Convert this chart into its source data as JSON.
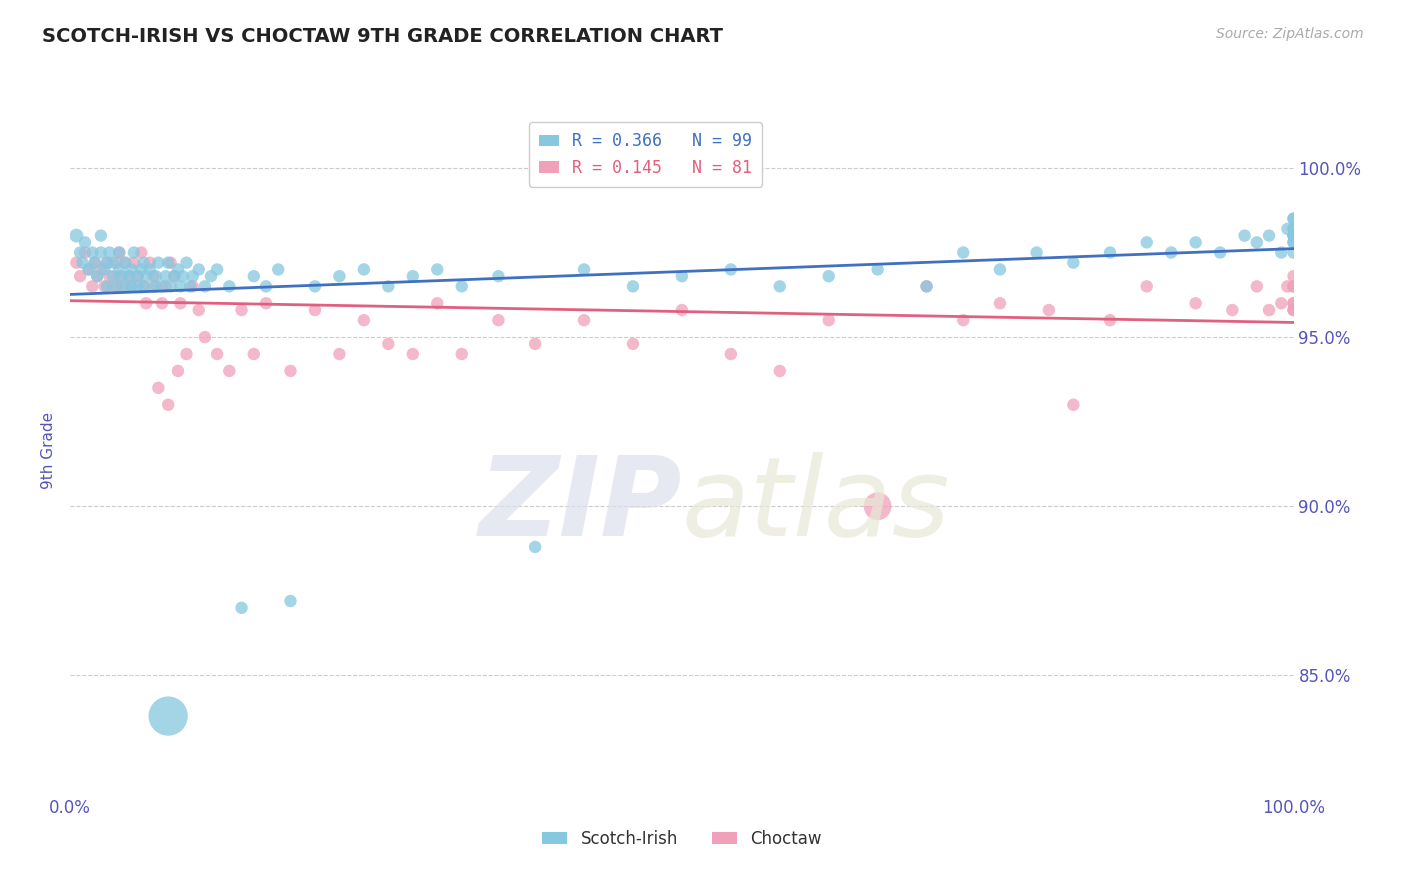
{
  "title": "SCOTCH-IRISH VS CHOCTAW 9TH GRADE CORRELATION CHART",
  "source_text": "Source: ZipAtlas.com",
  "ylabel": "9th Grade",
  "xmin": 0.0,
  "xmax": 1.0,
  "ymin": 0.815,
  "ymax": 1.018,
  "yticks": [
    0.85,
    0.9,
    0.95,
    1.0
  ],
  "ytick_labels": [
    "85.0%",
    "90.0%",
    "95.0%",
    "100.0%"
  ],
  "legend_blue_label": "R = 0.366   N = 99",
  "legend_pink_label": "R = 0.145   N = 81",
  "scotch_irish_color": "#85c8e0",
  "choctaw_color": "#f0a0b8",
  "blue_line_color": "#4070c0",
  "pink_line_color": "#e06080",
  "background_color": "#ffffff",
  "grid_color": "#cccccc",
  "title_color": "#222222",
  "axis_label_color": "#5555bb",
  "scotch_irish_x": [
    0.005,
    0.008,
    0.01,
    0.012,
    0.015,
    0.018,
    0.02,
    0.022,
    0.025,
    0.025,
    0.028,
    0.03,
    0.03,
    0.032,
    0.035,
    0.035,
    0.038,
    0.04,
    0.04,
    0.042,
    0.045,
    0.045,
    0.048,
    0.05,
    0.05,
    0.052,
    0.055,
    0.055,
    0.058,
    0.06,
    0.06,
    0.062,
    0.065,
    0.068,
    0.07,
    0.072,
    0.075,
    0.078,
    0.08,
    0.08,
    0.082,
    0.085,
    0.088,
    0.09,
    0.092,
    0.095,
    0.098,
    0.1,
    0.105,
    0.11,
    0.115,
    0.12,
    0.13,
    0.14,
    0.15,
    0.16,
    0.17,
    0.18,
    0.2,
    0.22,
    0.24,
    0.26,
    0.28,
    0.3,
    0.32,
    0.35,
    0.38,
    0.42,
    0.46,
    0.5,
    0.54,
    0.58,
    0.62,
    0.66,
    0.7,
    0.73,
    0.76,
    0.79,
    0.82,
    0.85,
    0.88,
    0.9,
    0.92,
    0.94,
    0.96,
    0.97,
    0.98,
    0.99,
    0.995,
    1.0,
    1.0,
    1.0,
    1.0,
    1.0,
    1.0,
    1.0,
    1.0,
    1.0,
    1.0
  ],
  "scotch_irish_y": [
    0.98,
    0.975,
    0.972,
    0.978,
    0.97,
    0.975,
    0.972,
    0.968,
    0.975,
    0.98,
    0.97,
    0.965,
    0.972,
    0.975,
    0.968,
    0.972,
    0.965,
    0.97,
    0.975,
    0.968,
    0.965,
    0.972,
    0.968,
    0.965,
    0.97,
    0.975,
    0.968,
    0.965,
    0.97,
    0.965,
    0.972,
    0.968,
    0.97,
    0.965,
    0.968,
    0.972,
    0.965,
    0.968,
    0.838,
    0.972,
    0.965,
    0.968,
    0.97,
    0.965,
    0.968,
    0.972,
    0.965,
    0.968,
    0.97,
    0.965,
    0.968,
    0.97,
    0.965,
    0.87,
    0.968,
    0.965,
    0.97,
    0.872,
    0.965,
    0.968,
    0.97,
    0.965,
    0.968,
    0.97,
    0.965,
    0.968,
    0.888,
    0.97,
    0.965,
    0.968,
    0.97,
    0.965,
    0.968,
    0.97,
    0.965,
    0.975,
    0.97,
    0.975,
    0.972,
    0.975,
    0.978,
    0.975,
    0.978,
    0.975,
    0.98,
    0.978,
    0.98,
    0.975,
    0.982,
    0.978,
    0.98,
    0.975,
    0.982,
    0.978,
    0.98,
    0.982,
    0.985,
    0.98,
    0.985
  ],
  "scotch_irish_sizes": [
    100,
    80,
    80,
    80,
    80,
    80,
    80,
    80,
    80,
    80,
    80,
    80,
    80,
    80,
    80,
    80,
    80,
    80,
    80,
    80,
    80,
    80,
    80,
    80,
    80,
    80,
    80,
    80,
    80,
    80,
    80,
    80,
    80,
    80,
    80,
    80,
    80,
    80,
    800,
    80,
    80,
    80,
    80,
    80,
    80,
    80,
    80,
    80,
    80,
    80,
    80,
    80,
    80,
    80,
    80,
    80,
    80,
    80,
    80,
    80,
    80,
    80,
    80,
    80,
    80,
    80,
    80,
    80,
    80,
    80,
    80,
    80,
    80,
    80,
    80,
    80,
    80,
    80,
    80,
    80,
    80,
    80,
    80,
    80,
    80,
    80,
    80,
    80,
    80,
    80,
    80,
    80,
    80,
    80,
    80,
    80,
    80,
    80,
    80
  ],
  "choctaw_x": [
    0.005,
    0.008,
    0.012,
    0.015,
    0.018,
    0.02,
    0.022,
    0.025,
    0.028,
    0.03,
    0.032,
    0.035,
    0.038,
    0.04,
    0.04,
    0.042,
    0.045,
    0.048,
    0.05,
    0.052,
    0.055,
    0.058,
    0.06,
    0.062,
    0.065,
    0.068,
    0.07,
    0.072,
    0.075,
    0.078,
    0.08,
    0.082,
    0.085,
    0.088,
    0.09,
    0.095,
    0.1,
    0.105,
    0.11,
    0.12,
    0.13,
    0.14,
    0.15,
    0.16,
    0.18,
    0.2,
    0.22,
    0.24,
    0.26,
    0.28,
    0.3,
    0.32,
    0.35,
    0.38,
    0.42,
    0.46,
    0.5,
    0.54,
    0.58,
    0.62,
    0.66,
    0.7,
    0.73,
    0.76,
    0.8,
    0.82,
    0.85,
    0.88,
    0.92,
    0.95,
    0.97,
    0.98,
    0.99,
    0.995,
    1.0,
    1.0,
    1.0,
    1.0,
    1.0,
    1.0,
    1.0
  ],
  "choctaw_y": [
    0.972,
    0.968,
    0.975,
    0.97,
    0.965,
    0.972,
    0.968,
    0.97,
    0.965,
    0.972,
    0.968,
    0.965,
    0.972,
    0.968,
    0.975,
    0.965,
    0.972,
    0.968,
    0.965,
    0.972,
    0.968,
    0.975,
    0.965,
    0.96,
    0.972,
    0.968,
    0.965,
    0.935,
    0.96,
    0.965,
    0.93,
    0.972,
    0.968,
    0.94,
    0.96,
    0.945,
    0.965,
    0.958,
    0.95,
    0.945,
    0.94,
    0.958,
    0.945,
    0.96,
    0.94,
    0.958,
    0.945,
    0.955,
    0.948,
    0.945,
    0.96,
    0.945,
    0.955,
    0.948,
    0.955,
    0.948,
    0.958,
    0.945,
    0.94,
    0.955,
    0.9,
    0.965,
    0.955,
    0.96,
    0.958,
    0.93,
    0.955,
    0.965,
    0.96,
    0.958,
    0.965,
    0.958,
    0.96,
    0.965,
    0.958,
    0.96,
    0.958,
    0.965,
    0.96,
    0.965,
    0.968
  ],
  "choctaw_sizes": [
    80,
    80,
    80,
    80,
    80,
    80,
    80,
    80,
    80,
    80,
    80,
    80,
    80,
    80,
    80,
    80,
    80,
    80,
    80,
    80,
    80,
    80,
    80,
    80,
    80,
    80,
    80,
    80,
    80,
    80,
    80,
    80,
    80,
    80,
    80,
    80,
    80,
    80,
    80,
    80,
    80,
    80,
    80,
    80,
    80,
    80,
    80,
    80,
    80,
    80,
    80,
    80,
    80,
    80,
    80,
    80,
    80,
    80,
    80,
    80,
    400,
    80,
    80,
    80,
    80,
    80,
    80,
    80,
    80,
    80,
    80,
    80,
    80,
    80,
    80,
    80,
    80,
    80,
    80,
    80,
    80
  ]
}
